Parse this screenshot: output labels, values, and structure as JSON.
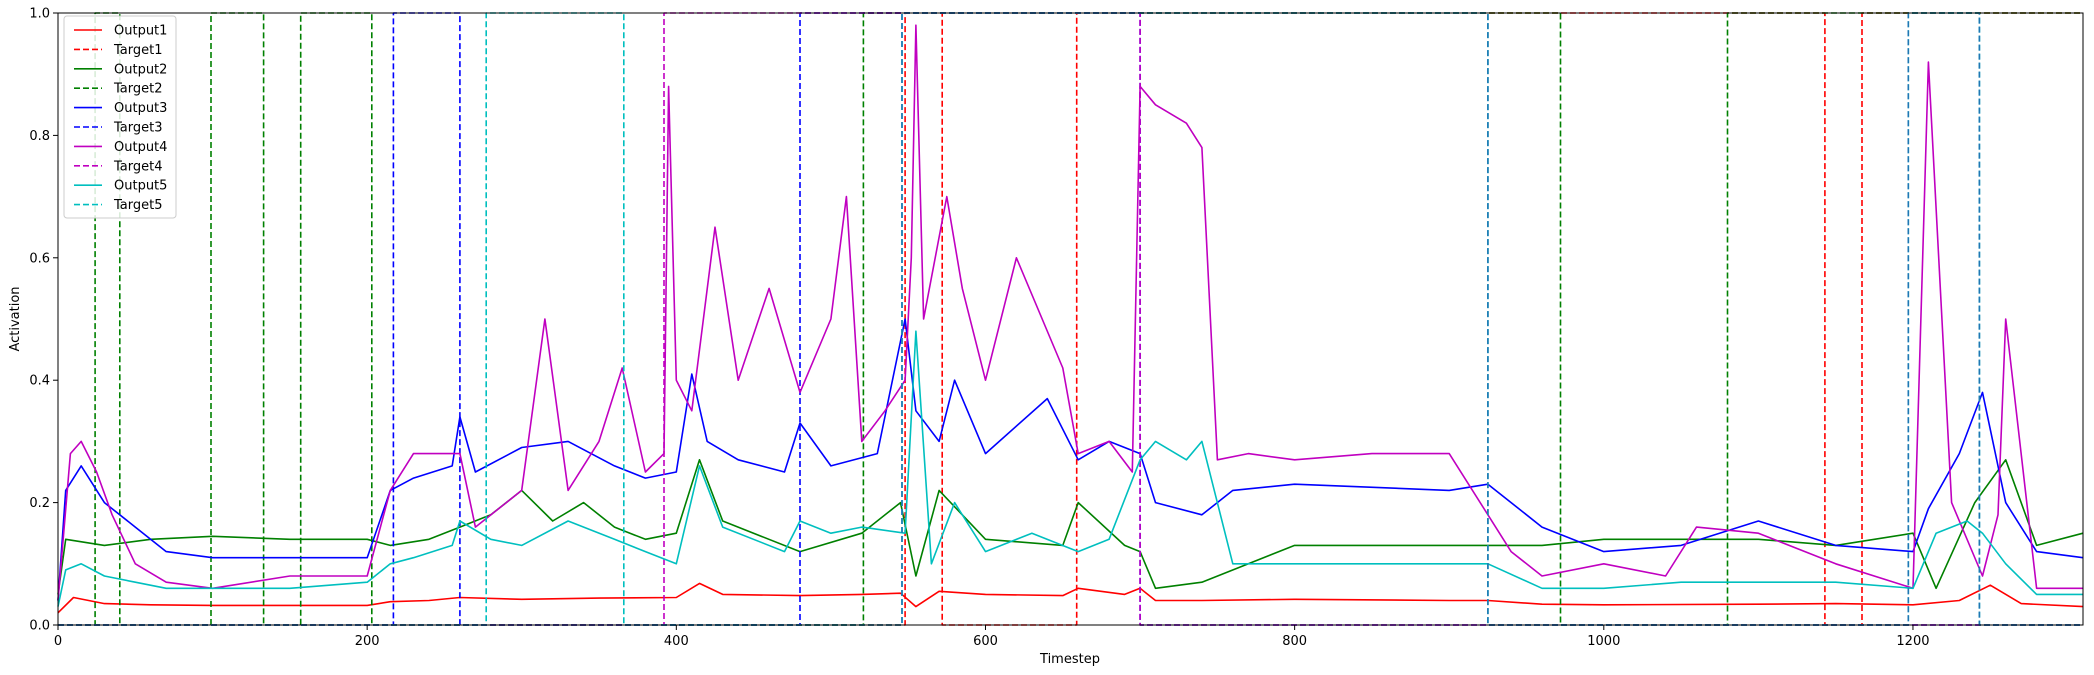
{
  "chart_data": {
    "type": "line",
    "title": "",
    "xlabel": "Timestep",
    "ylabel": "Activation",
    "xlim": [
      0,
      1310
    ],
    "ylim": [
      0.0,
      1.0
    ],
    "xticks": [
      0,
      200,
      400,
      600,
      800,
      1000,
      1200
    ],
    "yticks": [
      0.0,
      0.2,
      0.4,
      0.6,
      0.8,
      1.0
    ],
    "ytick_labels": [
      "0.0",
      "0.2",
      "0.4",
      "0.6",
      "0.8",
      "1.0"
    ],
    "grid": false,
    "legend_position": "top-left",
    "series": [
      {
        "name": "Output1",
        "color": "#ff0000",
        "dash": false,
        "x": [
          0,
          10,
          30,
          60,
          100,
          150,
          200,
          215,
          240,
          260,
          300,
          350,
          400,
          415,
          430,
          480,
          520,
          545,
          555,
          570,
          600,
          650,
          660,
          690,
          700,
          710,
          740,
          800,
          900,
          925,
          960,
          1000,
          1100,
          1150,
          1200,
          1230,
          1250,
          1270,
          1310
        ],
        "y": [
          0.02,
          0.045,
          0.035,
          0.033,
          0.032,
          0.032,
          0.032,
          0.038,
          0.04,
          0.045,
          0.042,
          0.044,
          0.045,
          0.068,
          0.05,
          0.048,
          0.05,
          0.052,
          0.03,
          0.055,
          0.05,
          0.048,
          0.06,
          0.05,
          0.06,
          0.04,
          0.04,
          0.042,
          0.04,
          0.04,
          0.034,
          0.033,
          0.034,
          0.035,
          0.033,
          0.04,
          0.065,
          0.035,
          0.03
        ]
      },
      {
        "name": "Target1",
        "color": "#ff0000",
        "dash": true,
        "x": [
          0,
          548,
          548,
          572,
          572,
          659,
          659,
          1143,
          1143,
          1167,
          1167,
          1310
        ],
        "y": [
          0,
          0,
          1,
          1,
          0,
          0,
          1,
          1,
          0,
          0,
          1,
          1
        ]
      },
      {
        "name": "Output2",
        "color": "#008000",
        "dash": false,
        "x": [
          0,
          5,
          30,
          60,
          100,
          150,
          200,
          215,
          240,
          260,
          280,
          300,
          320,
          340,
          360,
          380,
          400,
          415,
          430,
          480,
          520,
          545,
          555,
          570,
          600,
          650,
          660,
          690,
          700,
          710,
          740,
          800,
          900,
          925,
          960,
          1000,
          1100,
          1150,
          1200,
          1215,
          1240,
          1260,
          1280,
          1310
        ],
        "y": [
          0.05,
          0.14,
          0.13,
          0.14,
          0.145,
          0.14,
          0.14,
          0.13,
          0.14,
          0.16,
          0.18,
          0.22,
          0.17,
          0.2,
          0.16,
          0.14,
          0.15,
          0.27,
          0.17,
          0.12,
          0.15,
          0.2,
          0.08,
          0.22,
          0.14,
          0.13,
          0.2,
          0.13,
          0.12,
          0.06,
          0.07,
          0.13,
          0.13,
          0.13,
          0.13,
          0.14,
          0.14,
          0.13,
          0.15,
          0.06,
          0.2,
          0.27,
          0.13,
          0.15
        ]
      },
      {
        "name": "Target2",
        "color": "#008000",
        "dash": true,
        "x": [
          0,
          24,
          24,
          40,
          40,
          99,
          99,
          133,
          133,
          157,
          157,
          203,
          203,
          521,
          521,
          972,
          972,
          1080,
          1080,
          1310
        ],
        "y": [
          0,
          0,
          1,
          1,
          0,
          0,
          1,
          1,
          0,
          0,
          1,
          1,
          0,
          0,
          1,
          1,
          0,
          0,
          1,
          1
        ]
      },
      {
        "name": "Output3",
        "color": "#0000ff",
        "dash": false,
        "x": [
          0,
          5,
          15,
          30,
          50,
          70,
          100,
          150,
          200,
          215,
          230,
          255,
          260,
          270,
          300,
          330,
          360,
          380,
          400,
          410,
          420,
          440,
          470,
          480,
          500,
          530,
          548,
          555,
          570,
          580,
          600,
          640,
          660,
          680,
          700,
          710,
          740,
          760,
          800,
          900,
          925,
          960,
          1000,
          1050,
          1100,
          1150,
          1200,
          1210,
          1230,
          1245,
          1260,
          1280,
          1310
        ],
        "y": [
          0.04,
          0.22,
          0.26,
          0.2,
          0.16,
          0.12,
          0.11,
          0.11,
          0.11,
          0.22,
          0.24,
          0.26,
          0.34,
          0.25,
          0.29,
          0.3,
          0.26,
          0.24,
          0.25,
          0.41,
          0.3,
          0.27,
          0.25,
          0.33,
          0.26,
          0.28,
          0.5,
          0.35,
          0.3,
          0.4,
          0.28,
          0.37,
          0.27,
          0.3,
          0.28,
          0.2,
          0.18,
          0.22,
          0.23,
          0.22,
          0.23,
          0.16,
          0.12,
          0.13,
          0.17,
          0.13,
          0.12,
          0.19,
          0.28,
          0.38,
          0.2,
          0.12,
          0.11
        ]
      },
      {
        "name": "Target3",
        "color": "#0000ff",
        "dash": true,
        "x": [
          0,
          217,
          217,
          260,
          260,
          480,
          480,
          700,
          700,
          1310
        ],
        "y": [
          0,
          0,
          1,
          1,
          0,
          0,
          1,
          1,
          0,
          0
        ]
      },
      {
        "name": "Output4",
        "color": "#c000c0",
        "dash": false,
        "x": [
          0,
          8,
          15,
          25,
          35,
          50,
          70,
          100,
          150,
          200,
          215,
          230,
          260,
          270,
          300,
          315,
          330,
          350,
          365,
          380,
          392,
          395,
          400,
          410,
          425,
          440,
          460,
          480,
          500,
          510,
          520,
          535,
          548,
          552,
          555,
          560,
          575,
          585,
          600,
          620,
          650,
          660,
          680,
          695,
          700,
          710,
          730,
          740,
          750,
          770,
          800,
          850,
          900,
          925,
          940,
          960,
          1000,
          1040,
          1060,
          1100,
          1150,
          1200,
          1210,
          1225,
          1245,
          1255,
          1260,
          1280,
          1310
        ],
        "y": [
          0.04,
          0.28,
          0.3,
          0.25,
          0.18,
          0.1,
          0.07,
          0.06,
          0.08,
          0.08,
          0.22,
          0.28,
          0.28,
          0.16,
          0.22,
          0.5,
          0.22,
          0.3,
          0.42,
          0.25,
          0.28,
          0.88,
          0.4,
          0.35,
          0.65,
          0.4,
          0.55,
          0.38,
          0.5,
          0.7,
          0.3,
          0.35,
          0.4,
          0.6,
          0.98,
          0.5,
          0.7,
          0.55,
          0.4,
          0.6,
          0.42,
          0.28,
          0.3,
          0.25,
          0.88,
          0.85,
          0.82,
          0.78,
          0.27,
          0.28,
          0.27,
          0.28,
          0.28,
          0.18,
          0.12,
          0.08,
          0.1,
          0.08,
          0.16,
          0.15,
          0.1,
          0.06,
          0.92,
          0.2,
          0.08,
          0.18,
          0.5,
          0.06,
          0.06
        ]
      },
      {
        "name": "Target4",
        "color": "#c000c0",
        "dash": true,
        "x": [
          0,
          392,
          392,
          700,
          700,
          1310
        ],
        "y": [
          0,
          0,
          1,
          1,
          0,
          0
        ]
      },
      {
        "name": "Output5",
        "color": "#00bfbf",
        "dash": false,
        "x": [
          0,
          5,
          15,
          30,
          50,
          70,
          100,
          150,
          200,
          215,
          230,
          255,
          260,
          280,
          300,
          330,
          360,
          380,
          400,
          415,
          430,
          470,
          480,
          500,
          520,
          548,
          555,
          565,
          580,
          600,
          630,
          660,
          680,
          700,
          710,
          730,
          740,
          760,
          800,
          900,
          925,
          960,
          1000,
          1050,
          1100,
          1150,
          1200,
          1215,
          1235,
          1245,
          1260,
          1280,
          1310
        ],
        "y": [
          0.03,
          0.09,
          0.1,
          0.08,
          0.07,
          0.06,
          0.06,
          0.06,
          0.07,
          0.1,
          0.11,
          0.13,
          0.17,
          0.14,
          0.13,
          0.17,
          0.14,
          0.12,
          0.1,
          0.26,
          0.16,
          0.12,
          0.17,
          0.15,
          0.16,
          0.15,
          0.48,
          0.1,
          0.2,
          0.12,
          0.15,
          0.12,
          0.14,
          0.27,
          0.3,
          0.27,
          0.3,
          0.1,
          0.1,
          0.1,
          0.1,
          0.06,
          0.06,
          0.07,
          0.07,
          0.07,
          0.06,
          0.15,
          0.17,
          0.15,
          0.1,
          0.05,
          0.05
        ]
      },
      {
        "name": "Target5",
        "color": "#00bfbf",
        "dash": true,
        "x": [
          0,
          277,
          277,
          366,
          366,
          546,
          546,
          925,
          925,
          1197,
          1197,
          1243,
          1243,
          1310
        ],
        "y": [
          0,
          0,
          1,
          1,
          0,
          0,
          1,
          1,
          0,
          0,
          1,
          1,
          0,
          0
        ]
      },
      {
        "name": "",
        "color": "#1f77b4",
        "dash": true,
        "x": [
          0,
          546,
          546,
          925,
          925,
          1197,
          1197,
          1243,
          1243,
          1310
        ],
        "y": [
          0,
          0,
          1,
          1,
          0,
          0,
          1,
          1,
          0,
          0
        ]
      }
    ]
  }
}
